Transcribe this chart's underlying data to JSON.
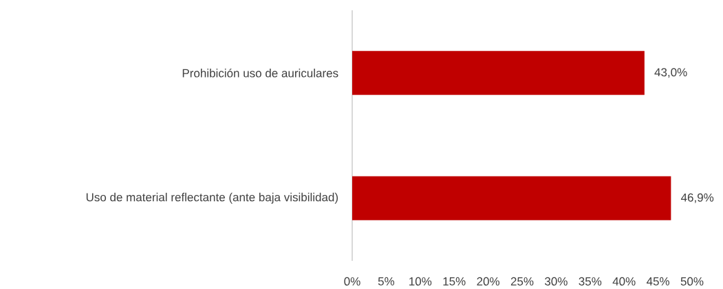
{
  "chart_data": {
    "type": "bar",
    "orientation": "horizontal",
    "categories": [
      "Prohibición uso de auriculares",
      "Uso de material reflectante (ante baja visibilidad)"
    ],
    "values": [
      43.0,
      46.9
    ],
    "color": "#c00000",
    "value_labels": [
      "43,0%",
      "46,9%"
    ],
    "xlim": [
      0,
      50
    ],
    "xticks": [
      {
        "value": 0,
        "label": "0%"
      },
      {
        "value": 5,
        "label": "5%"
      },
      {
        "value": 10,
        "label": "10%"
      },
      {
        "value": 15,
        "label": "15%"
      },
      {
        "value": 20,
        "label": "20%"
      },
      {
        "value": 25,
        "label": "25%"
      },
      {
        "value": 30,
        "label": "30%"
      },
      {
        "value": 35,
        "label": "35%"
      },
      {
        "value": 40,
        "label": "40%"
      },
      {
        "value": 45,
        "label": "45%"
      },
      {
        "value": 50,
        "label": "50%"
      }
    ],
    "grid": false
  }
}
